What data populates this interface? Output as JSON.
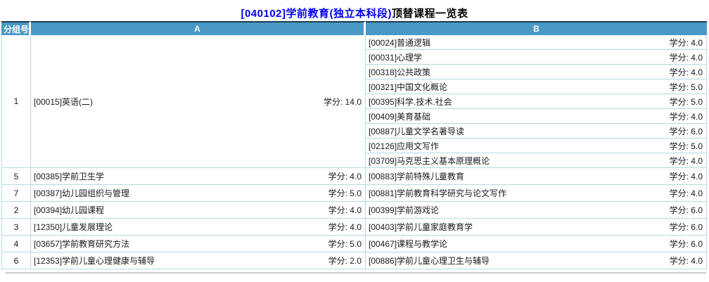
{
  "title": {
    "blue_part": "[040102]学前教育(独立本科段)",
    "black_part": "顶替课程一览表"
  },
  "table": {
    "headers": {
      "group": "分组号",
      "a": "A",
      "b": "B"
    },
    "credit_label": "学分:",
    "groups": [
      {
        "group_no": "1",
        "a": {
          "name": "[00015]英语(二)",
          "credit": "14.0"
        },
        "b": [
          {
            "name": "[00024]普通逻辑",
            "credit": "4.0"
          },
          {
            "name": "[00031]心理学",
            "credit": "4.0"
          },
          {
            "name": "[00318]公共政策",
            "credit": "4.0"
          },
          {
            "name": "[00321]中国文化概论",
            "credit": "5.0"
          },
          {
            "name": "[00395]科学.技术.社会",
            "credit": "5.0"
          },
          {
            "name": "[00409]美育基础",
            "credit": "4.0"
          },
          {
            "name": "[00887]儿童文学名著导读",
            "credit": "6.0"
          },
          {
            "name": "[02126]应用文写作",
            "credit": "5.0"
          },
          {
            "name": "[03709]马克思主义基本原理概论",
            "credit": "4.0"
          }
        ]
      },
      {
        "group_no": "5",
        "a": {
          "name": "[00385]学前卫生学",
          "credit": "4.0"
        },
        "b": [
          {
            "name": "[00883]学前特殊儿童教育",
            "credit": "4.0"
          }
        ]
      },
      {
        "group_no": "7",
        "a": {
          "name": "[00387]幼儿园组织与管理",
          "credit": "5.0"
        },
        "b": [
          {
            "name": "[00881]学前教育科学研究与论文写作",
            "credit": "4.0"
          }
        ]
      },
      {
        "group_no": "2",
        "a": {
          "name": "[00394]幼儿园课程",
          "credit": "4.0"
        },
        "b": [
          {
            "name": "[00399]学前游戏论",
            "credit": "6.0"
          }
        ]
      },
      {
        "group_no": "3",
        "a": {
          "name": "[12350]儿童发展理论",
          "credit": "4.0"
        },
        "b": [
          {
            "name": "[00403]学前儿童家庭教育学",
            "credit": "6.0"
          }
        ]
      },
      {
        "group_no": "4",
        "a": {
          "name": "[03657]学前教育研究方法",
          "credit": "5.0"
        },
        "b": [
          {
            "name": "[00467]课程与教学论",
            "credit": "6.0"
          }
        ]
      },
      {
        "group_no": "6",
        "a": {
          "name": "[12353]学前儿童心理健康与辅导",
          "credit": "2.0"
        },
        "b": [
          {
            "name": "[00886]学前儿童心理卫生与辅导",
            "credit": "4.0"
          }
        ]
      }
    ]
  },
  "colors": {
    "header_blue": "#4a98c6",
    "border_blue": "#b4d9e9",
    "top_border": "#1c3d52",
    "title_blue": "#0000ee",
    "gray_line": "#cbcbcb"
  }
}
